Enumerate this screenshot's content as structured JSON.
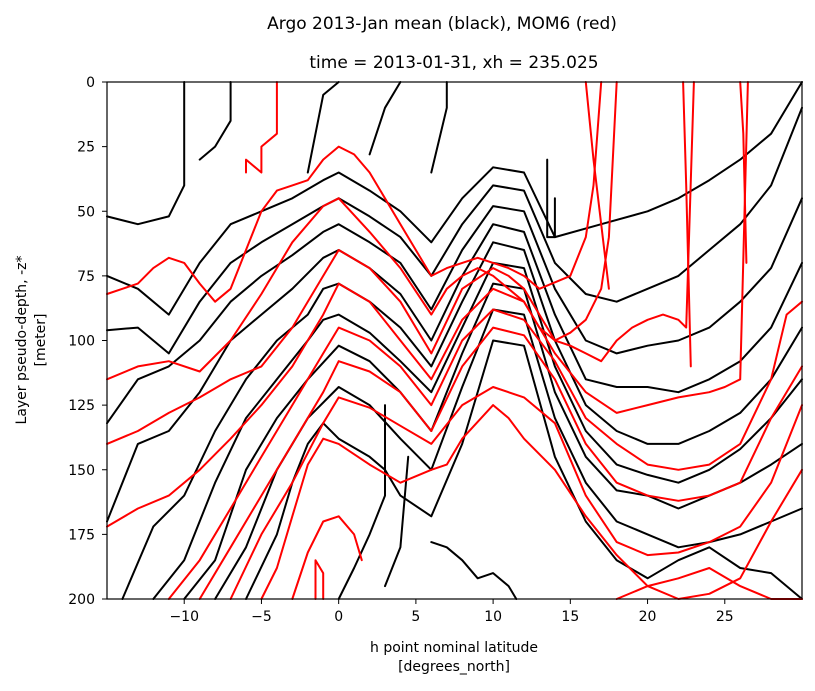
{
  "chart_data": {
    "type": "line",
    "title": "Argo 2013-Jan mean (black), MOM6 (red)",
    "subtitle": "time = 2013-01-31, xh = 235.025",
    "xlabel": [
      "h point nominal latitude",
      "[degrees_north]"
    ],
    "ylabel": [
      "Layer pseudo-depth, -z*",
      "[meter]"
    ],
    "xlim": [
      -15,
      30
    ],
    "ylim": [
      200,
      0
    ],
    "y_inverted": true,
    "x_ticks": [
      -10,
      -5,
      0,
      5,
      10,
      15,
      20,
      25
    ],
    "x_tick_labels": [
      "−10",
      "−5",
      "0",
      "5",
      "10",
      "15",
      "20",
      "25"
    ],
    "y_ticks": [
      0,
      25,
      50,
      75,
      100,
      125,
      150,
      175,
      200
    ],
    "y_tick_labels": [
      "0",
      "25",
      "50",
      "75",
      "100",
      "125",
      "150",
      "175",
      "200"
    ],
    "grid": false,
    "colors": {
      "argo": "#000000",
      "mom6": "#ff0000"
    },
    "series": [
      {
        "color": "#000000",
        "x": [
          -15,
          -13,
          -11,
          -10,
          -10
        ],
        "y": [
          52,
          55,
          52,
          40,
          0
        ]
      },
      {
        "color": "#000000",
        "x": [
          -9,
          -8,
          -7,
          -7
        ],
        "y": [
          30,
          25,
          15,
          0
        ]
      },
      {
        "color": "#000000",
        "x": [
          -2,
          -1,
          0
        ],
        "y": [
          35,
          5,
          0
        ]
      },
      {
        "color": "#000000",
        "x": [
          2,
          3,
          4
        ],
        "y": [
          28,
          10,
          0
        ]
      },
      {
        "color": "#000000",
        "x": [
          6,
          7,
          7
        ],
        "y": [
          35,
          10,
          0
        ]
      },
      {
        "color": "#000000",
        "x": [
          -15,
          -13,
          -11,
          -9,
          -7,
          -5,
          -3,
          -1,
          0,
          2,
          4,
          6,
          8,
          10,
          12,
          14,
          17,
          20,
          22,
          24,
          26,
          28,
          30
        ],
        "y": [
          75,
          80,
          90,
          70,
          55,
          50,
          45,
          38,
          35,
          42,
          50,
          62,
          45,
          33,
          35,
          60,
          55,
          50,
          45,
          38,
          30,
          20,
          0
        ]
      },
      {
        "color": "#000000",
        "x": [
          -15,
          -13,
          -11,
          -9,
          -7,
          -5,
          -3,
          -1,
          0,
          2,
          4,
          6,
          8,
          10,
          12,
          14,
          16,
          18,
          20,
          22,
          24,
          26,
          28,
          30
        ],
        "y": [
          96,
          95,
          105,
          85,
          70,
          62,
          55,
          48,
          45,
          52,
          60,
          75,
          55,
          40,
          42,
          70,
          82,
          85,
          80,
          75,
          65,
          55,
          40,
          10
        ]
      },
      {
        "color": "#000000",
        "x": [
          -15,
          -13,
          -11,
          -9,
          -7,
          -5,
          -3,
          -1,
          0,
          2,
          4,
          6,
          8,
          10,
          12,
          14,
          16,
          18,
          20,
          22,
          24,
          26,
          28,
          30
        ],
        "y": [
          132,
          115,
          110,
          100,
          85,
          75,
          67,
          58,
          55,
          62,
          70,
          88,
          65,
          48,
          50,
          80,
          100,
          105,
          102,
          100,
          95,
          85,
          72,
          45
        ]
      },
      {
        "color": "#000000",
        "x": [
          -15,
          -13,
          -11,
          -9,
          -7,
          -5,
          -3,
          -1,
          0,
          2,
          4,
          6,
          8,
          10,
          12,
          14,
          16,
          18,
          20,
          22,
          24,
          26,
          28,
          30
        ],
        "y": [
          170,
          140,
          135,
          120,
          100,
          90,
          80,
          68,
          65,
          72,
          82,
          100,
          75,
          55,
          58,
          90,
          115,
          118,
          118,
          120,
          115,
          108,
          95,
          70
        ]
      },
      {
        "color": "#000000",
        "x": [
          -14,
          -12,
          -10,
          -8,
          -6,
          -4,
          -2,
          -1,
          0,
          2,
          4,
          6,
          8,
          10,
          12,
          14,
          16,
          18,
          20,
          22,
          24,
          26,
          28,
          30
        ],
        "y": [
          200,
          172,
          160,
          135,
          115,
          100,
          90,
          80,
          78,
          85,
          95,
          110,
          85,
          62,
          65,
          100,
          125,
          135,
          140,
          140,
          135,
          128,
          115,
          95
        ]
      },
      {
        "color": "#000000",
        "x": [
          -12,
          -10,
          -8,
          -6,
          -4,
          -2,
          -1,
          0,
          2,
          4,
          6,
          8,
          10,
          12,
          14,
          16,
          18,
          20,
          22,
          24,
          26,
          28,
          30
        ],
        "y": [
          200,
          185,
          155,
          130,
          115,
          100,
          92,
          90,
          97,
          108,
          120,
          95,
          70,
          72,
          110,
          135,
          148,
          152,
          155,
          150,
          142,
          130,
          115
        ]
      },
      {
        "color": "#000000",
        "x": [
          -10,
          -8,
          -6,
          -4,
          -2,
          0,
          2,
          4,
          6,
          8,
          10,
          12,
          14,
          16,
          18,
          20,
          22,
          24,
          26,
          28,
          30
        ],
        "y": [
          200,
          185,
          150,
          130,
          115,
          102,
          108,
          120,
          135,
          105,
          78,
          80,
          120,
          145,
          158,
          160,
          165,
          160,
          155,
          148,
          140
        ]
      },
      {
        "color": "#000000",
        "x": [
          -8,
          -6,
          -4,
          -2,
          0,
          2,
          4,
          6,
          8,
          10,
          12,
          14,
          16,
          18,
          20,
          22,
          24,
          26,
          28,
          30
        ],
        "y": [
          200,
          180,
          150,
          130,
          118,
          125,
          138,
          150,
          118,
          88,
          90,
          130,
          155,
          170,
          175,
          180,
          178,
          175,
          170,
          165
        ]
      },
      {
        "color": "#000000",
        "x": [
          -6,
          -4,
          -3,
          -2,
          -1,
          0,
          2,
          3,
          4,
          6,
          8,
          10,
          12,
          14,
          16,
          18,
          20,
          22,
          24,
          26,
          28,
          30
        ],
        "y": [
          200,
          175,
          155,
          140,
          132,
          138,
          145,
          150,
          160,
          168,
          140,
          100,
          102,
          145,
          170,
          185,
          192,
          185,
          180,
          188,
          190,
          200
        ]
      },
      {
        "color": "#000000",
        "x": [
          0,
          1,
          2,
          3,
          3
        ],
        "y": [
          200,
          188,
          175,
          160,
          125
        ]
      },
      {
        "color": "#000000",
        "x": [
          3,
          4,
          4.5
        ],
        "y": [
          195,
          180,
          145
        ]
      },
      {
        "color": "#000000",
        "x": [
          6,
          7,
          8,
          9,
          10,
          11,
          11.5
        ],
        "y": [
          178,
          180,
          185,
          192,
          190,
          195,
          200
        ]
      },
      {
        "color": "#000000",
        "x": [
          13.5,
          13.5,
          14,
          14
        ],
        "y": [
          30,
          60,
          60,
          45
        ]
      },
      {
        "color": "#ff0000",
        "x": [
          -6,
          -6,
          -5,
          -5,
          -4,
          -4
        ],
        "y": [
          35,
          30,
          35,
          25,
          20,
          0
        ]
      },
      {
        "color": "#ff0000",
        "x": [
          -15,
          -14,
          -13,
          -12,
          -11,
          -10,
          -9,
          -8,
          -7,
          -6,
          -5,
          -4,
          -3,
          -2,
          -1,
          0,
          1,
          2,
          4,
          6,
          7,
          8,
          9,
          10,
          11,
          12,
          13,
          15,
          16,
          16.5,
          17
        ],
        "y": [
          82,
          80,
          78,
          72,
          68,
          70,
          78,
          85,
          80,
          65,
          50,
          42,
          40,
          38,
          30,
          25,
          28,
          35,
          55,
          75,
          72,
          70,
          68,
          70,
          72,
          75,
          80,
          75,
          60,
          40,
          0
        ]
      },
      {
        "color": "#ff0000",
        "x": [
          -15,
          -13,
          -11,
          -9,
          -7,
          -5,
          -3,
          -1,
          0,
          2,
          4,
          6,
          7,
          8,
          9,
          10,
          11,
          12,
          13,
          14,
          15,
          16,
          17,
          17.5,
          18
        ],
        "y": [
          115,
          110,
          108,
          112,
          100,
          82,
          62,
          48,
          45,
          58,
          72,
          90,
          80,
          75,
          72,
          75,
          80,
          85,
          95,
          100,
          97,
          92,
          80,
          60,
          0
        ]
      },
      {
        "color": "#ff0000",
        "x": [
          -15,
          -13,
          -11,
          -9,
          -7,
          -5,
          -3,
          -1,
          0,
          2,
          4,
          6,
          8,
          10,
          11,
          12,
          13,
          14,
          15,
          16,
          17,
          18,
          19,
          20,
          21,
          22,
          22.5,
          23
        ],
        "y": [
          140,
          135,
          128,
          122,
          115,
          110,
          95,
          75,
          65,
          72,
          85,
          105,
          80,
          72,
          75,
          80,
          90,
          100,
          102,
          105,
          108,
          100,
          95,
          92,
          90,
          92,
          95,
          0
        ]
      },
      {
        "color": "#ff0000",
        "x": [
          -15,
          -13,
          -11,
          -9,
          -7,
          -5,
          -3,
          -1,
          0,
          2,
          4,
          6,
          8,
          10,
          12,
          13,
          14,
          16,
          18,
          20,
          22,
          24,
          25,
          26,
          26.5
        ],
        "y": [
          172,
          165,
          160,
          150,
          138,
          125,
          110,
          90,
          78,
          85,
          100,
          115,
          92,
          80,
          85,
          95,
          105,
          120,
          128,
          125,
          122,
          120,
          118,
          115,
          0
        ]
      },
      {
        "color": "#ff0000",
        "x": [
          -11,
          -9,
          -7,
          -5,
          -3,
          -1,
          0,
          2,
          4,
          6,
          8,
          10,
          12,
          14,
          16,
          18,
          20,
          22,
          24,
          26,
          28,
          29,
          30
        ],
        "y": [
          200,
          185,
          165,
          145,
          125,
          105,
          95,
          100,
          110,
          125,
          100,
          88,
          92,
          108,
          130,
          140,
          148,
          150,
          148,
          140,
          115,
          90,
          85
        ]
      },
      {
        "color": "#ff0000",
        "x": [
          -9,
          -7,
          -5,
          -3,
          -1,
          0,
          2,
          4,
          6,
          8,
          10,
          12,
          14,
          16,
          18,
          20,
          22,
          24,
          26,
          28,
          30
        ],
        "y": [
          200,
          180,
          160,
          140,
          120,
          108,
          112,
          120,
          135,
          110,
          95,
          98,
          115,
          140,
          155,
          160,
          162,
          160,
          155,
          130,
          110
        ]
      },
      {
        "color": "#ff0000",
        "x": [
          -7,
          -5,
          -3,
          -1,
          0,
          2,
          4,
          6,
          8,
          10,
          12,
          14,
          16,
          18,
          20,
          22,
          24,
          26,
          28,
          30
        ],
        "y": [
          200,
          175,
          155,
          132,
          122,
          126,
          133,
          140,
          125,
          118,
          122,
          132,
          160,
          178,
          183,
          182,
          178,
          172,
          155,
          125
        ]
      },
      {
        "color": "#ff0000",
        "x": [
          -5,
          -4,
          -3,
          -2,
          -1,
          0,
          2,
          4,
          6,
          7,
          8,
          10,
          11,
          12,
          14,
          16,
          18,
          20,
          22,
          24,
          26,
          28,
          30
        ],
        "y": [
          200,
          188,
          168,
          148,
          138,
          140,
          148,
          155,
          150,
          148,
          138,
          125,
          130,
          138,
          150,
          168,
          183,
          195,
          200,
          198,
          192,
          170,
          150
        ]
      },
      {
        "color": "#ff0000",
        "x": [
          -1.5,
          -1.5,
          -1,
          -1
        ],
        "y": [
          200,
          185,
          190,
          200
        ]
      },
      {
        "color": "#ff0000",
        "x": [
          -3,
          -2,
          -1,
          0,
          1,
          1.5
        ],
        "y": [
          200,
          182,
          170,
          168,
          175,
          185
        ]
      },
      {
        "color": "#ff0000",
        "x": [
          18,
          20,
          22,
          24,
          26,
          28,
          30
        ],
        "y": [
          200,
          195,
          192,
          188,
          195,
          200,
          200
        ]
      },
      {
        "color": "#ff0000",
        "x": [
          16,
          16.5,
          17,
          17.5
        ],
        "y": [
          0,
          30,
          55,
          80
        ]
      },
      {
        "color": "#ff0000",
        "x": [
          22.3,
          22.5,
          22.8
        ],
        "y": [
          0,
          40,
          110
        ]
      },
      {
        "color": "#ff0000",
        "x": [
          26,
          26.2,
          26.4
        ],
        "y": [
          0,
          20,
          70
        ]
      }
    ]
  }
}
